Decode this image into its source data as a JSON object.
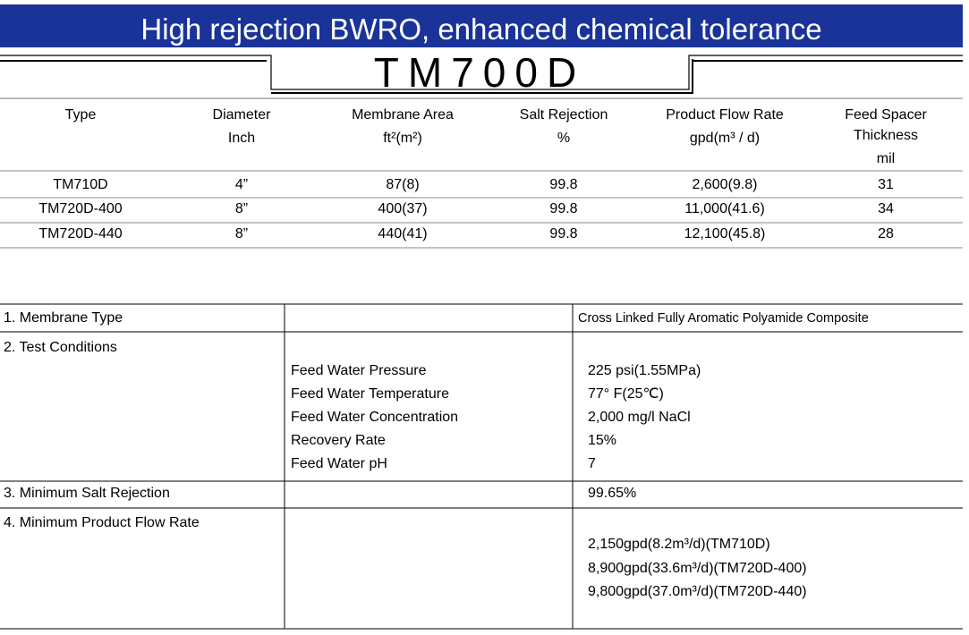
{
  "header": {
    "title": "High rejection BWRO, enhanced chemical tolerance",
    "model": "TM700D"
  },
  "specs": {
    "columns": [
      [
        "Type"
      ],
      [
        "Diameter",
        "Inch"
      ],
      [
        "Membrane Area",
        "ft²(m²)"
      ],
      [
        "Salt Rejection",
        "%"
      ],
      [
        "Product Flow Rate",
        "gpd(m³ / d)"
      ],
      [
        "Feed Spacer",
        "Thickness",
        "mil"
      ]
    ],
    "rows": [
      [
        "TM710D",
        "4”",
        "87(8)",
        "99.8",
        "2,600(9.8)",
        "31"
      ],
      [
        "TM720D-400",
        "8”",
        "400(37)",
        "99.8",
        "11,000(41.6)",
        "34"
      ],
      [
        "TM720D-440",
        "8”",
        "440(41)",
        "99.8",
        "12,100(45.8)",
        "28"
      ]
    ]
  },
  "conditions": {
    "rows": [
      {
        "label": "1. Membrane Type",
        "params": [],
        "values": [
          "Cross Linked Fully Aromatic Polyamide Composite"
        ]
      },
      {
        "label": "2. Test Conditions",
        "params": [
          "Feed Water Pressure",
          "Feed Water Temperature",
          "Feed Water Concentration",
          "Recovery Rate",
          "Feed Water pH"
        ],
        "values": [
          "225 psi(1.55MPa)",
          "77° F(25℃)",
          "2,000 mg/l NaCl",
          "15%",
          "7"
        ]
      },
      {
        "label": "3. Minimum Salt Rejection",
        "params": [],
        "values": [
          "99.65%"
        ]
      },
      {
        "label": "4. Minimum Product Flow Rate",
        "params": [],
        "values": [
          "2,150gpd(8.2m³/d)(TM710D)",
          "8,900gpd(33.6m³/d)(TM720D-400)",
          "9,800gpd(37.0m³/d)(TM720D-440)"
        ]
      }
    ]
  }
}
